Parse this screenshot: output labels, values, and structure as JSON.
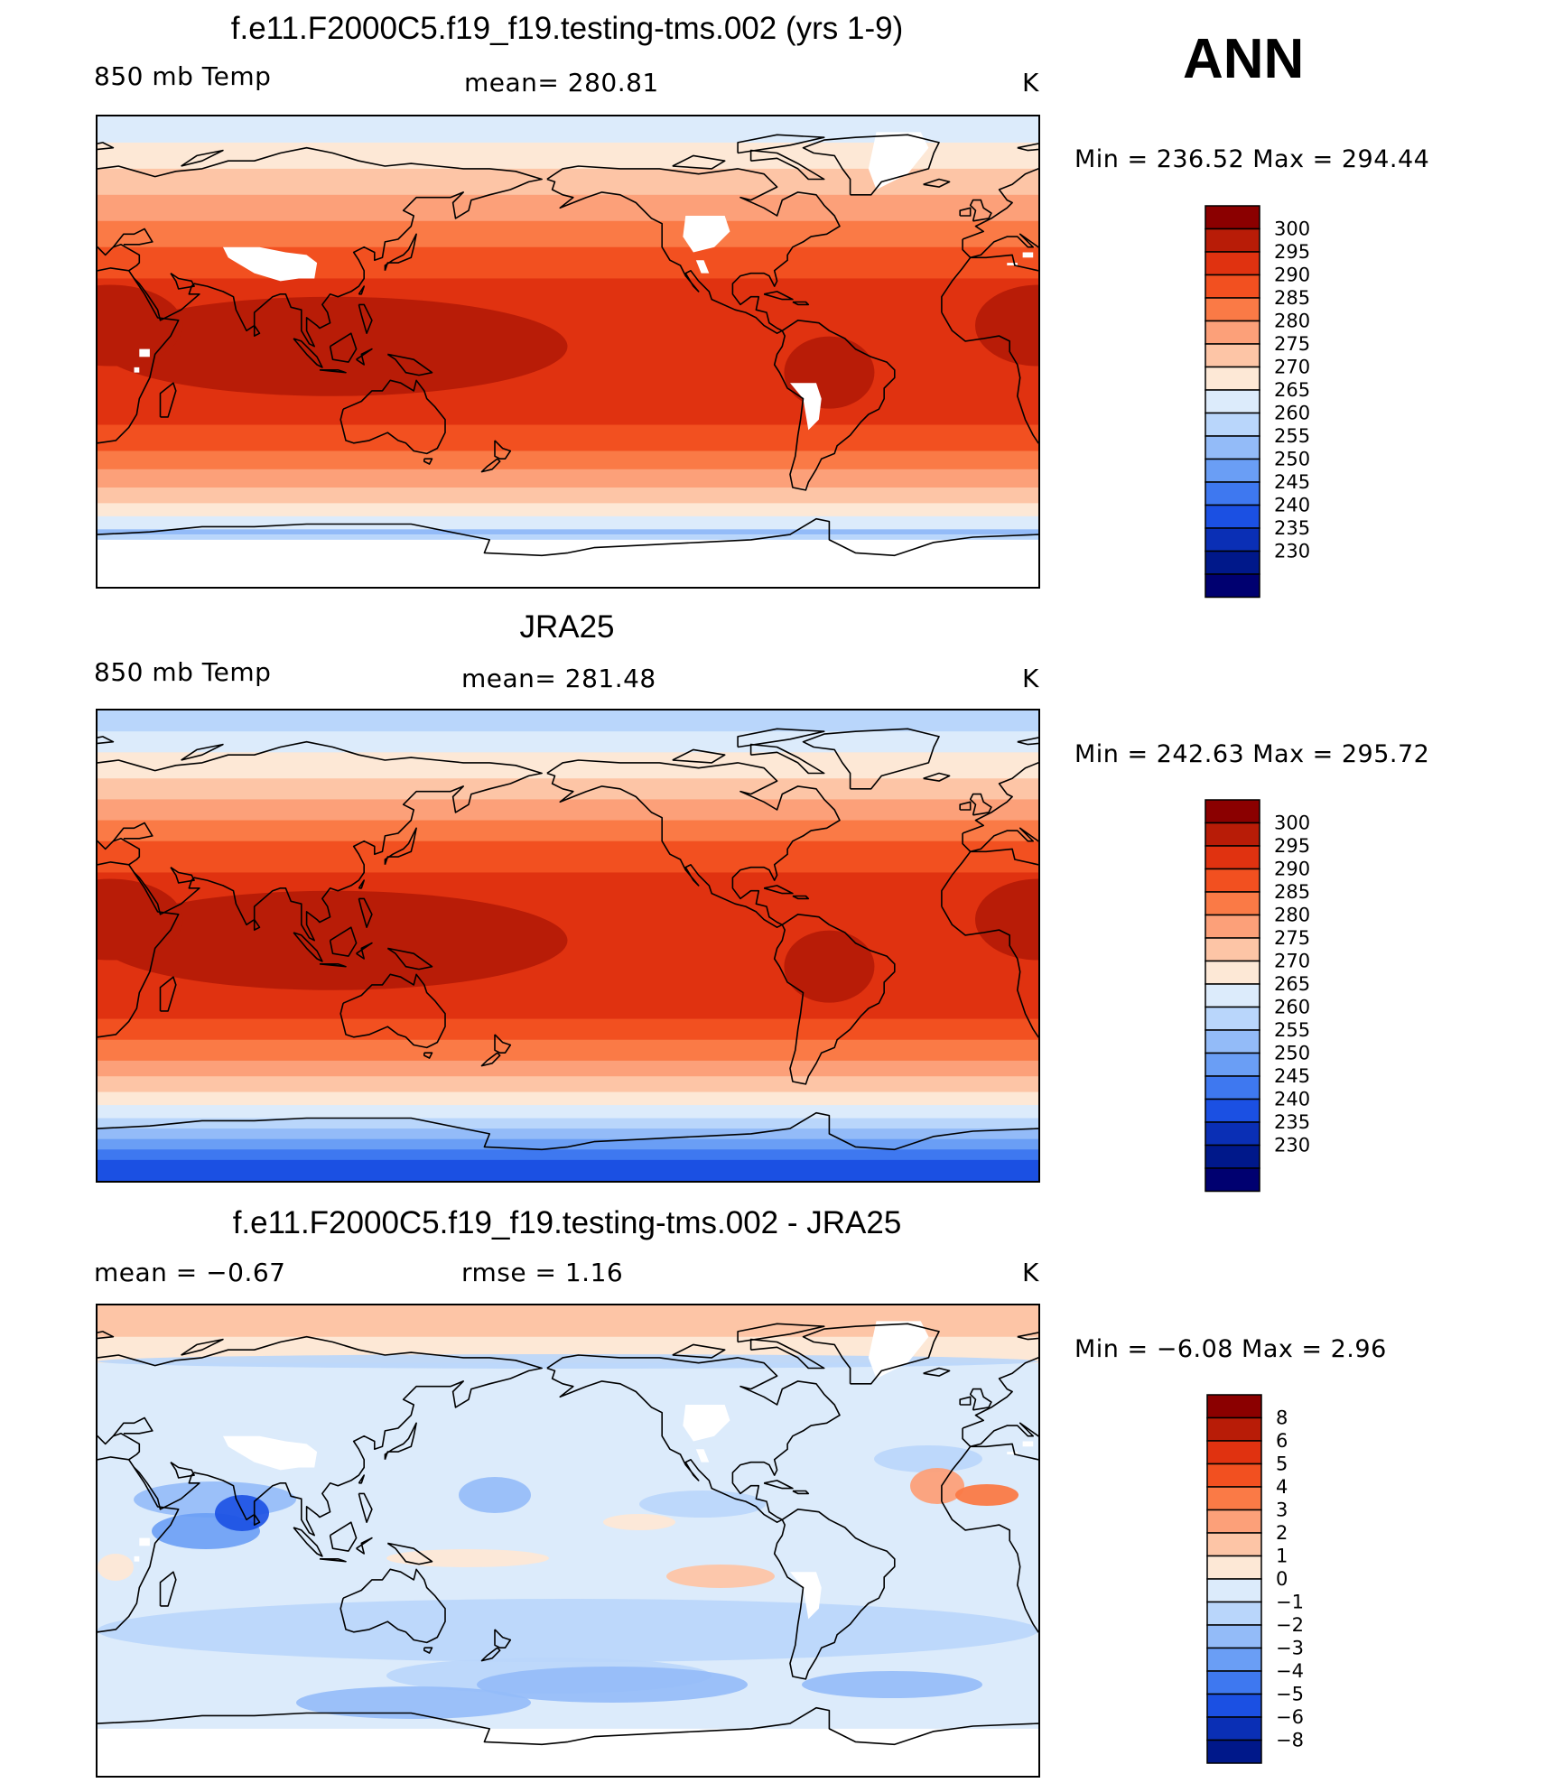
{
  "season": "ANN",
  "units": "K",
  "panels": [
    {
      "title": "f.e11.F2000C5.f19_f19.testing-tms.002 (yrs 1-9)",
      "left_label": "850 mb Temp",
      "center_label": "mean=  280.81",
      "right_label": "K",
      "min_max": "Min  =  236.52  Max  =  294.44",
      "kind": "model",
      "colorbar_labels": [
        "300",
        "295",
        "290",
        "285",
        "280",
        "275",
        "270",
        "265",
        "260",
        "255",
        "250",
        "245",
        "240",
        "235",
        "230"
      ]
    },
    {
      "title": "JRA25",
      "left_label": "850 mb Temp",
      "center_label": "mean=  281.48",
      "right_label": "K",
      "min_max": "Min  =  242.63  Max  =  295.72",
      "kind": "obs",
      "colorbar_labels": [
        "300",
        "295",
        "290",
        "285",
        "280",
        "275",
        "270",
        "265",
        "260",
        "255",
        "250",
        "245",
        "240",
        "235",
        "230"
      ]
    },
    {
      "title": "f.e11.F2000C5.f19_f19.testing-tms.002 - JRA25",
      "left_label": "mean  =    −0.67",
      "center_label": "rmse  =     1.16",
      "right_label": "K",
      "min_max": "Min  =    −6.08  Max  =     2.96",
      "kind": "diff",
      "colorbar_labels": [
        "8",
        "6",
        "5",
        "4",
        "3",
        "2",
        "1",
        "0",
        "−1",
        "−2",
        "−3",
        "−4",
        "−5",
        "−6",
        "−8"
      ]
    }
  ],
  "colorbar_colors": [
    "#8b0000",
    "#b81c07",
    "#e03210",
    "#f25020",
    "#fa7a46",
    "#fca079",
    "#fdc5a6",
    "#fde8d6",
    "#dcebfb",
    "#b9d6fb",
    "#93bbf8",
    "#6a9ef5",
    "#3e78f0",
    "#1b50e3",
    "#0a2fb5",
    "#00188a",
    "#000070"
  ],
  "diff_colors": [
    "#8b0000",
    "#b81c07",
    "#e03210",
    "#f25020",
    "#fa7a46",
    "#fca079",
    "#fdc5a6",
    "#fde8d6",
    "#dcebfb",
    "#b9d6fb",
    "#93bbf8",
    "#6a9ef5",
    "#3e78f0",
    "#1b50e3",
    "#0a2fb5",
    "#00188a"
  ]
}
